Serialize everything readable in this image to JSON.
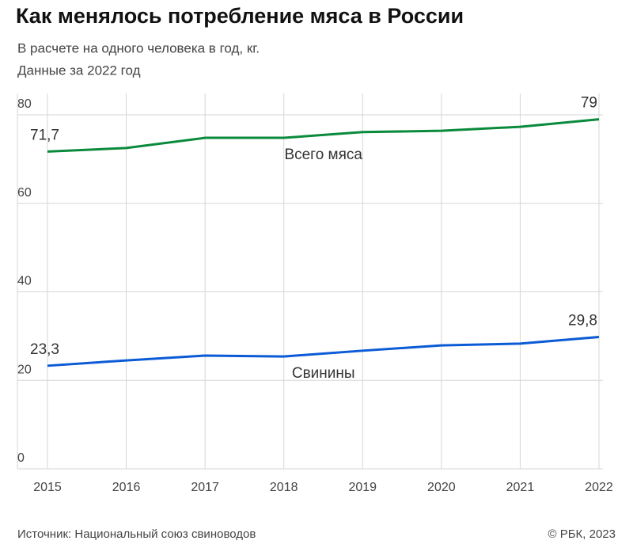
{
  "chart_data": {
    "type": "line",
    "title": "Как менялось потребление мяса в России",
    "subtitle": [
      "В расчете на одного человека в год, кг.",
      "Данные за 2022 год"
    ],
    "source": "Источник: Национальный союз свиноводов",
    "credit": "© РБК, 2023",
    "x": [
      2015,
      2016,
      2017,
      2018,
      2019,
      2020,
      2021,
      2022
    ],
    "xlim": [
      2015,
      2022
    ],
    "xticks": [
      2015,
      2016,
      2017,
      2018,
      2019,
      2020,
      2021,
      2022
    ],
    "ylim": [
      0,
      80
    ],
    "yticks": [
      0,
      20,
      40,
      60,
      80
    ],
    "grid": true,
    "series": [
      {
        "name": "Всего мяса",
        "color": "#0a8a3c",
        "values": [
          71.7,
          72.5,
          74.8,
          74.8,
          76.1,
          76.4,
          77.3,
          79
        ],
        "value_labels": [
          "71,7",
          null,
          null,
          null,
          null,
          null,
          null,
          "79"
        ]
      },
      {
        "name": "Свинины",
        "color": "#0b5bd6",
        "values": [
          23.3,
          24.5,
          25.6,
          25.4,
          26.7,
          27.9,
          28.3,
          29.8
        ],
        "value_labels": [
          "23,3",
          null,
          null,
          null,
          null,
          null,
          null,
          "29,8"
        ]
      }
    ]
  }
}
